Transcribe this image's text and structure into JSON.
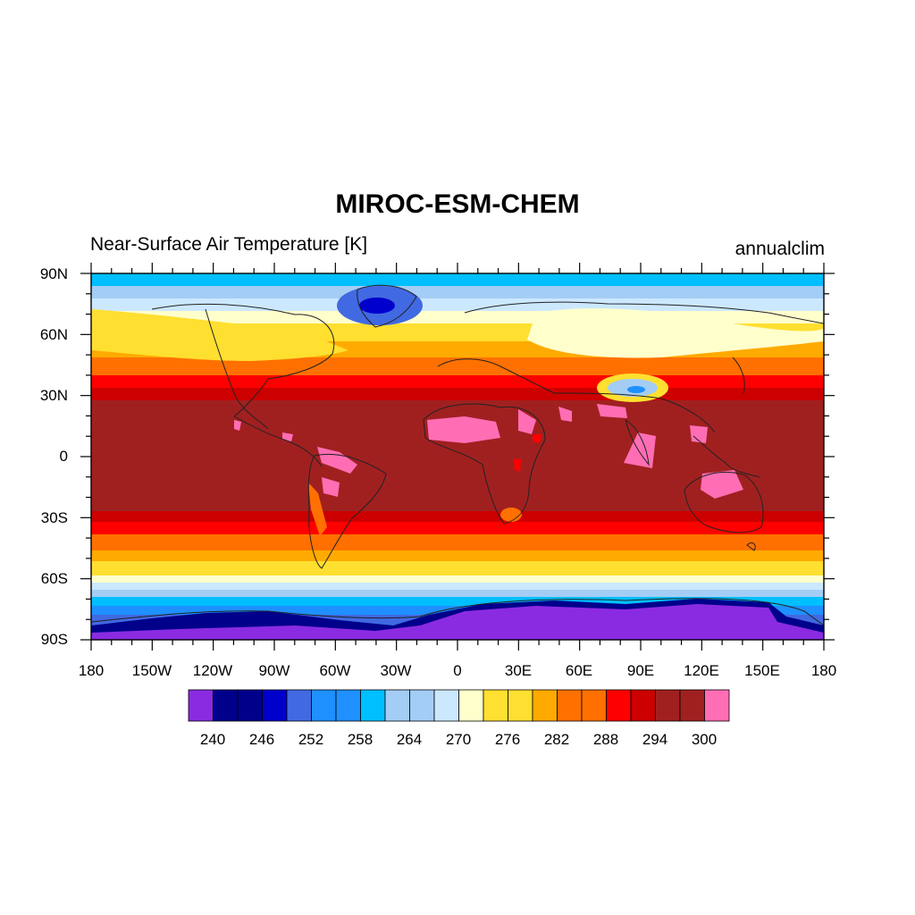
{
  "title": "MIROC-ESM-CHEM",
  "subtitle_left": "Near-Surface Air Temperature [K]",
  "subtitle_right": "annualclim",
  "lat_labels": [
    "90N",
    "60N",
    "30N",
    "0",
    "30S",
    "60S",
    "90S"
  ],
  "lon_labels": [
    "180",
    "150W",
    "120W",
    "90W",
    "60W",
    "30W",
    "0",
    "30E",
    "60E",
    "90E",
    "120E",
    "150E",
    "180"
  ],
  "colorbar": {
    "colors": [
      "#8a2be2",
      "#00008b",
      "#00008b",
      "#0000cd",
      "#4169e1",
      "#1e90ff",
      "#1e90ff",
      "#00bfff",
      "#a4cdf5",
      "#a4cdf5",
      "#cce8ff",
      "#ffffcc",
      "#ffdf30",
      "#ffdf30",
      "#ffaa00",
      "#ff7000",
      "#ff7000",
      "#ff0000",
      "#cc0000",
      "#a02020",
      "#a02020",
      "#ff6eb4"
    ],
    "labels": [
      "240",
      "246",
      "252",
      "258",
      "264",
      "270",
      "276",
      "282",
      "288",
      "294",
      "300"
    ]
  },
  "map_data": {
    "variable": "Near-Surface Air Temperature",
    "units": "K",
    "projection": "cylindrical-equidistant",
    "lon_range": [
      -180,
      180
    ],
    "lat_range": [
      -90,
      90
    ],
    "levels": [
      240,
      243,
      246,
      249,
      252,
      255,
      258,
      261,
      264,
      267,
      270,
      273,
      276,
      279,
      282,
      285,
      288,
      291,
      294,
      297,
      300
    ]
  }
}
